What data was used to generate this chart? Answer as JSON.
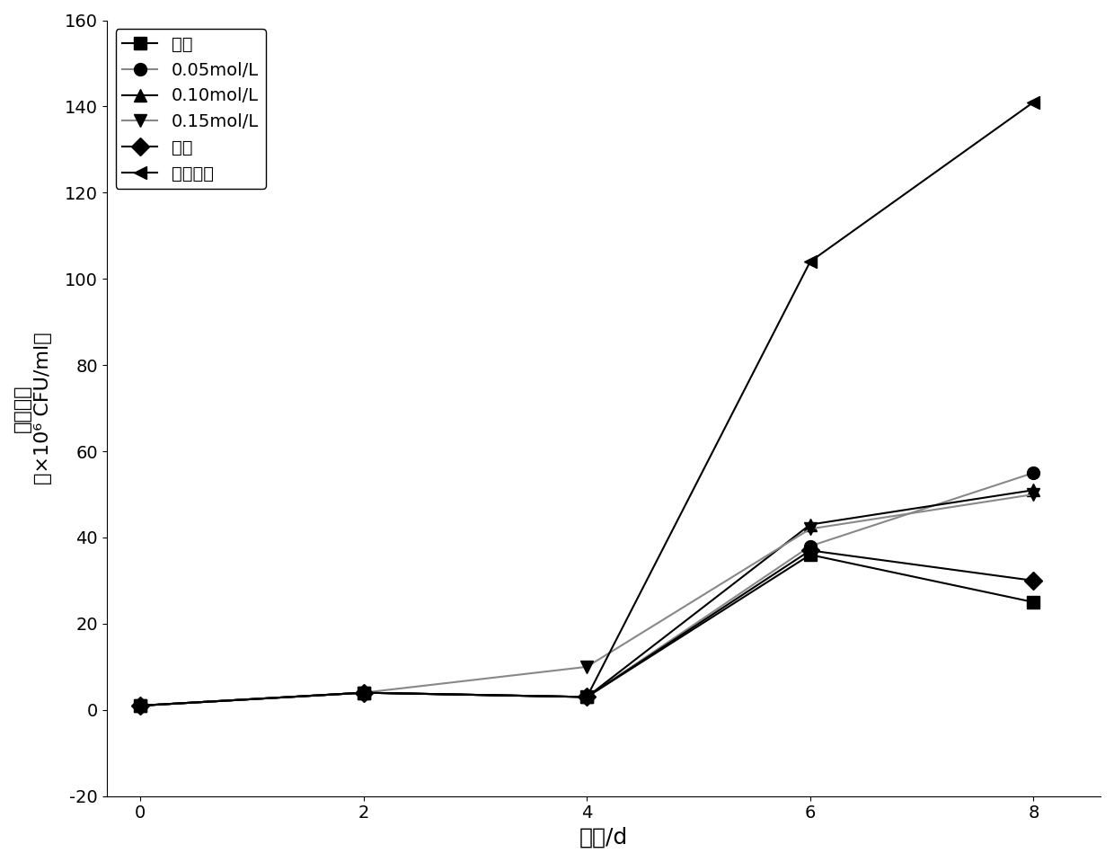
{
  "x": [
    0,
    2,
    4,
    6,
    8
  ],
  "series": [
    {
      "label": "自养",
      "marker": "s",
      "linecolor": "#000000",
      "values": [
        1,
        4,
        3,
        36,
        25
      ]
    },
    {
      "label": "0.05mol/L",
      "marker": "o",
      "linecolor": "#888888",
      "values": [
        1,
        4,
        3,
        38,
        55
      ]
    },
    {
      "label": "0.10mol/L",
      "marker": "^",
      "linecolor": "#000000",
      "values": [
        1,
        4,
        3,
        43,
        51
      ]
    },
    {
      "label": "0.15mol/L",
      "marker": "v",
      "linecolor": "#888888",
      "values": [
        1,
        4,
        10,
        42,
        50
      ]
    },
    {
      "label": "尿素",
      "marker": "D",
      "linecolor": "#000000",
      "values": [
        1,
        4,
        3,
        37,
        30
      ]
    },
    {
      "label": "胰蛋白胨",
      "marker": "<",
      "linecolor": "#000000",
      "values": [
        1,
        4,
        3,
        104,
        141
      ]
    }
  ],
  "xlabel": "时间/d",
  "ylabel_line1": "细胞密度",
  "ylabel_line2": "（×10⁶ CFU/ml）",
  "xlim": [
    -0.3,
    8.6
  ],
  "ylim": [
    -20,
    160
  ],
  "yticks": [
    -20,
    0,
    20,
    40,
    60,
    80,
    100,
    120,
    140,
    160
  ],
  "xticks": [
    0,
    2,
    4,
    6,
    8
  ],
  "figsize": [
    12.4,
    9.59
  ],
  "dpi": 100,
  "legend_loc": "upper left",
  "marker_size": 10,
  "linewidth": 1.5
}
